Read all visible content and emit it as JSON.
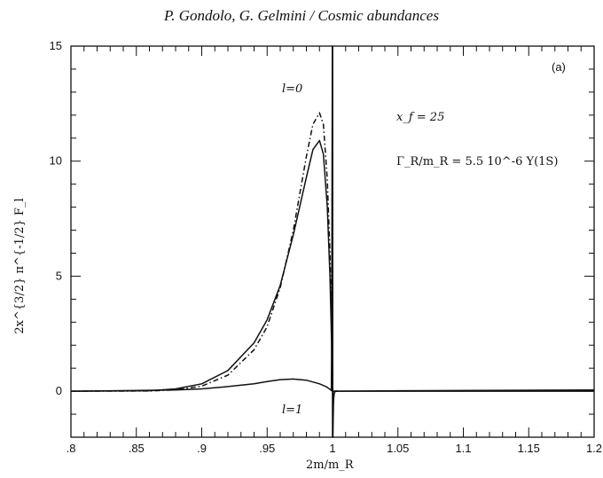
{
  "header": {
    "text": "P. Gondolo, G. Gelmini  /  Cosmic abundances"
  },
  "chart_data": {
    "type": "line",
    "panel_label": "(a)",
    "xlabel": "2m/m_R",
    "ylabel": "2x^{3/2} π^{-1/2} F_l",
    "xlim": [
      0.8,
      1.2
    ],
    "ylim": [
      -2,
      15
    ],
    "x_ticks": [
      0.8,
      0.85,
      0.9,
      0.95,
      1.0,
      1.05,
      1.1,
      1.15,
      1.2
    ],
    "x_tick_labels": [
      ".8",
      ".85",
      ".9",
      ".95",
      "1",
      "1.05",
      "1.1",
      "1.15",
      "1.2"
    ],
    "y_ticks": [
      0,
      5,
      10,
      15
    ],
    "y_tick_labels": [
      "0",
      "5",
      "10",
      "15"
    ],
    "annotations": {
      "xf": "x_f = 25",
      "gamma": "Γ_R/m_R = 5.5  10^-6   Υ(1S)",
      "l0": "l=0",
      "l1": "l=1"
    },
    "series": [
      {
        "style": "solid",
        "x": [
          0.8,
          0.86,
          0.88,
          0.9,
          0.92,
          0.94,
          0.95,
          0.96,
          0.97,
          0.98,
          0.985,
          0.99,
          0.993,
          0.996,
          0.998,
          0.9995,
          1.0,
          1.0005,
          1.003,
          1.2
        ],
        "y": [
          0,
          0.02,
          0.1,
          0.32,
          0.9,
          2.1,
          3.1,
          4.6,
          6.8,
          9.3,
          10.5,
          10.9,
          10.3,
          8.0,
          5.0,
          1.5,
          0.1,
          0.0,
          0.0,
          0.0
        ]
      },
      {
        "style": "dash-dot",
        "x": [
          0.8,
          0.86,
          0.88,
          0.9,
          0.92,
          0.94,
          0.95,
          0.96,
          0.97,
          0.98,
          0.985,
          0.99,
          0.993,
          0.996,
          0.998,
          0.9995,
          1.0
        ],
        "y": [
          0,
          0.01,
          0.06,
          0.22,
          0.7,
          1.8,
          2.8,
          4.5,
          7.0,
          10.2,
          11.6,
          12.1,
          11.6,
          9.2,
          6.0,
          2.0,
          0.1
        ]
      },
      {
        "style": "solid",
        "x": [
          0.8,
          0.88,
          0.9,
          0.92,
          0.94,
          0.95,
          0.96,
          0.97,
          0.98,
          0.99,
          0.995,
          0.998,
          1.0,
          1.002,
          1.05,
          1.2
        ],
        "y": [
          0,
          0.05,
          0.1,
          0.2,
          0.32,
          0.42,
          0.5,
          0.53,
          0.48,
          0.32,
          0.2,
          0.08,
          0.0,
          0.0,
          0.02,
          0.05
        ]
      },
      {
        "style": "solid",
        "x": [
          0.9992,
          0.9994,
          0.9996,
          0.9998,
          0.99995,
          1.0,
          1.00005,
          1.0002,
          1.0004,
          1.0006,
          1.0008,
          1.0012,
          1.002,
          1.004
        ],
        "y": [
          0,
          2,
          6,
          11,
          15,
          15,
          -2,
          -2,
          -1.2,
          -0.6,
          -0.3,
          -0.1,
          0,
          0
        ]
      }
    ]
  }
}
